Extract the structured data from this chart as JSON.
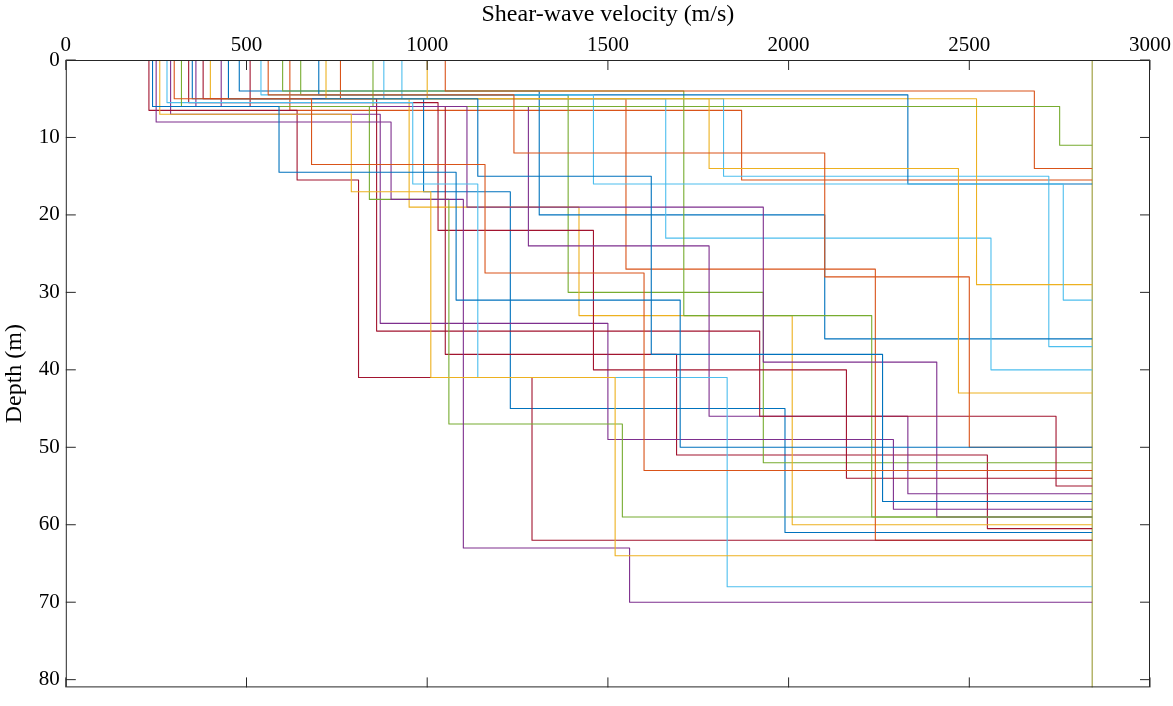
{
  "chart_data": {
    "type": "line",
    "xlabel": "Shear-wave velocity (m/s)",
    "ylabel": "Depth (m)",
    "xlim": [
      0,
      3000
    ],
    "xticks": [
      0,
      500,
      1000,
      1500,
      2000,
      2500,
      3000
    ],
    "ylim": [
      81,
      0
    ],
    "yticks": [
      0,
      10,
      20,
      30,
      40,
      50,
      60,
      70,
      80
    ],
    "grid": false,
    "legend": false,
    "line_style": "solid",
    "series": [
      {
        "color": "#0072bd",
        "x": [
          240,
          240,
          590,
          590,
          1080,
          1080,
          1700,
          1700,
          2840
        ],
        "values": [
          0,
          6,
          6,
          14.5,
          14.5,
          31,
          31,
          50,
          50
        ]
      },
      {
        "color": "#d95319",
        "x": [
          300,
          300,
          680,
          680,
          1160,
          1160,
          1600,
          1600,
          2840
        ],
        "values": [
          0,
          5,
          5,
          13.5,
          13.5,
          27.5,
          27.5,
          53,
          53
        ]
      },
      {
        "color": "#edb120",
        "x": [
          260,
          260,
          790,
          790,
          1010,
          1010,
          1520,
          1520,
          2840
        ],
        "values": [
          0,
          7,
          7,
          17,
          17,
          41,
          41,
          64,
          64
        ]
      },
      {
        "color": "#7e2f8e",
        "x": [
          250,
          250,
          900,
          900,
          1100,
          1100,
          1560,
          1560,
          2840
        ],
        "values": [
          0,
          8,
          8,
          18,
          18,
          63,
          63,
          70,
          70
        ]
      },
      {
        "color": "#77ac30",
        "x": [
          320,
          320,
          840,
          840,
          1060,
          1060,
          1540,
          1540,
          2840
        ],
        "values": [
          0,
          6,
          6,
          18,
          18,
          47,
          47,
          59,
          59
        ]
      },
      {
        "color": "#4dbeee",
        "x": [
          280,
          280,
          960,
          960,
          1140,
          1140,
          1830,
          1830,
          2840
        ],
        "values": [
          0,
          5.5,
          5.5,
          16,
          16,
          41,
          41,
          68,
          68
        ]
      },
      {
        "color": "#a2142f",
        "x": [
          230,
          230,
          640,
          640,
          810,
          810,
          1290,
          1290,
          2840
        ],
        "values": [
          0,
          6.5,
          6.5,
          15.5,
          15.5,
          41,
          41,
          62,
          62
        ]
      },
      {
        "color": "#0072bd",
        "x": [
          450,
          450,
          1140,
          1140,
          1620,
          1620,
          2260,
          2260,
          2840
        ],
        "values": [
          0,
          5,
          5,
          15,
          15,
          38,
          38,
          57,
          57
        ]
      },
      {
        "color": "#d95319",
        "x": [
          560,
          560,
          1240,
          1240,
          2100,
          2100,
          2500,
          2500,
          2840
        ],
        "values": [
          0,
          4.5,
          4.5,
          12,
          12,
          28,
          28,
          50,
          50
        ]
      },
      {
        "color": "#edb120",
        "x": [
          720,
          720,
          1780,
          1780,
          2470,
          2470,
          2840
        ],
        "values": [
          0,
          5,
          5,
          14,
          14,
          43,
          43
        ]
      },
      {
        "color": "#7e2f8e",
        "x": [
          360,
          360,
          1110,
          1110,
          1930,
          1930,
          2410,
          2410,
          2840
        ],
        "values": [
          0,
          6,
          6,
          19,
          19,
          39,
          39,
          59,
          59
        ]
      },
      {
        "color": "#77ac30",
        "x": [
          850,
          850,
          2750,
          2750,
          2840
        ],
        "values": [
          0,
          6,
          6,
          11,
          11
        ]
      },
      {
        "color": "#4dbeee",
        "x": [
          540,
          540,
          1460,
          1460,
          2760,
          2760,
          2840
        ],
        "values": [
          0,
          4.5,
          4.5,
          16,
          16,
          31,
          31
        ]
      },
      {
        "color": "#a2142f",
        "x": [
          380,
          380,
          860,
          860,
          1920,
          1920,
          2740,
          2740,
          2840
        ],
        "values": [
          0,
          5,
          5,
          35,
          35,
          46,
          46,
          55,
          55
        ]
      },
      {
        "color": "#0072bd",
        "x": [
          700,
          700,
          2330,
          2330,
          2840
        ],
        "values": [
          0,
          4.5,
          4.5,
          16,
          16
        ]
      },
      {
        "color": "#d95319",
        "x": [
          1050,
          1050,
          2680,
          2680,
          2840
        ],
        "values": [
          0,
          4,
          4,
          14,
          14
        ]
      },
      {
        "color": "#edb120",
        "x": [
          1000,
          1000,
          2520,
          2520,
          2840
        ],
        "values": [
          0,
          5,
          5,
          29,
          29
        ]
      },
      {
        "color": "#7e2f8e",
        "x": [
          430,
          430,
          1280,
          1280,
          1780,
          1780,
          2330,
          2330,
          2840
        ],
        "values": [
          0,
          6,
          6,
          24,
          24,
          46,
          46,
          56,
          56
        ]
      },
      {
        "color": "#77ac30",
        "x": [
          600,
          600,
          1710,
          1710,
          2230,
          2230,
          2840
        ],
        "values": [
          0,
          4,
          4,
          33,
          33,
          59,
          59
        ]
      },
      {
        "color": "#4dbeee",
        "x": [
          880,
          880,
          1660,
          1660,
          2560,
          2560,
          2840
        ],
        "values": [
          0,
          5,
          5,
          23,
          23,
          40,
          40
        ]
      },
      {
        "color": "#a2142f",
        "x": [
          340,
          340,
          1030,
          1030,
          1460,
          1460,
          2160,
          2160,
          2840
        ],
        "values": [
          0,
          5.5,
          5.5,
          22,
          22,
          40,
          40,
          54,
          54
        ]
      },
      {
        "color": "#0072bd",
        "x": [
          480,
          480,
          1310,
          1310,
          2100,
          2100,
          2840
        ],
        "values": [
          0,
          4,
          4,
          20,
          20,
          36,
          36
        ]
      },
      {
        "color": "#d95319",
        "x": [
          760,
          760,
          1550,
          1550,
          2240,
          2240,
          2840
        ],
        "values": [
          0,
          5,
          5,
          27,
          27,
          62,
          62
        ]
      },
      {
        "color": "#edb120",
        "x": [
          400,
          400,
          950,
          950,
          1420,
          1420,
          2010,
          2010,
          2840
        ],
        "values": [
          0,
          5,
          5,
          19,
          19,
          33,
          33,
          60,
          60
        ]
      },
      {
        "color": "#7e2f8e",
        "x": [
          290,
          290,
          870,
          870,
          1500,
          1500,
          2290,
          2290,
          2840
        ],
        "values": [
          0,
          7,
          7,
          34,
          34,
          49,
          49,
          58,
          58
        ]
      },
      {
        "color": "#77ac30",
        "x": [
          650,
          650,
          1390,
          1390,
          1930,
          1930,
          2840
        ],
        "values": [
          0,
          4.5,
          4.5,
          30,
          30,
          52,
          52
        ]
      },
      {
        "color": "#4dbeee",
        "x": [
          930,
          930,
          1820,
          1820,
          2720,
          2720,
          2840
        ],
        "values": [
          0,
          5,
          5,
          15,
          15,
          37,
          37
        ]
      },
      {
        "color": "#a2142f",
        "x": [
          510,
          510,
          1050,
          1050,
          1690,
          1690,
          2550,
          2550,
          2840
        ],
        "values": [
          0,
          6,
          6,
          38,
          38,
          51,
          51,
          60.5,
          60.5
        ]
      },
      {
        "color": "#0072bd",
        "x": [
          350,
          350,
          990,
          990,
          1230,
          1230,
          1990,
          1990,
          2840
        ],
        "values": [
          0,
          5,
          5,
          17,
          17,
          45,
          45,
          61,
          61
        ]
      },
      {
        "color": "#d95319",
        "x": [
          620,
          620,
          1870,
          1870,
          2840
        ],
        "values": [
          0,
          6.5,
          6.5,
          15.5,
          15.5
        ]
      },
      {
        "color": "#999933",
        "x": [
          2840,
          2840
        ],
        "values": [
          0,
          81
        ]
      }
    ]
  }
}
